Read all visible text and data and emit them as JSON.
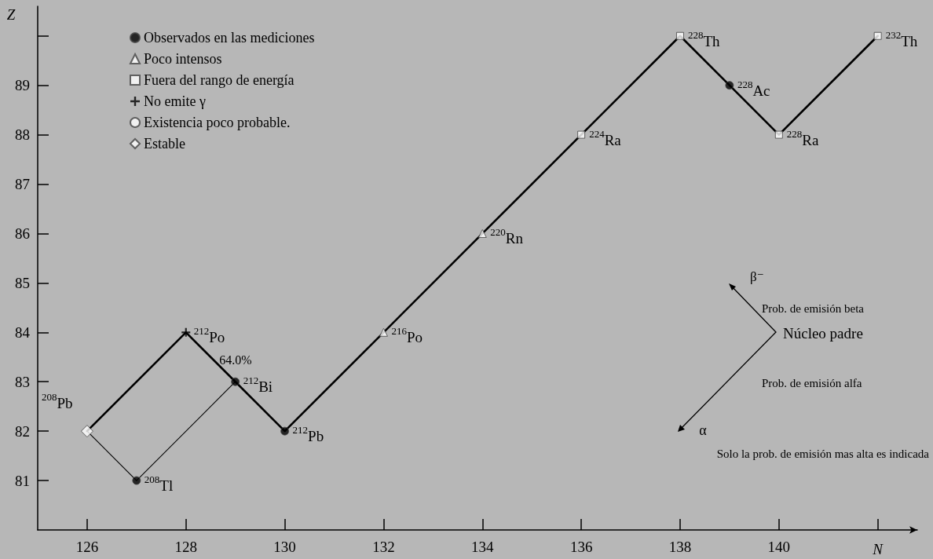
{
  "chart_data": {
    "type": "scatter",
    "xlabel": "N",
    "ylabel": "Z",
    "xlim": [
      125,
      142.8
    ],
    "ylim": [
      80,
      90.6
    ],
    "xticks": [
      126,
      128,
      130,
      132,
      134,
      136,
      138,
      140,
      {
        "value": 142,
        "label": null
      }
    ],
    "yticks": [
      81,
      82,
      83,
      84,
      85,
      86,
      87,
      88,
      89,
      {
        "value": 90,
        "label": null
      }
    ],
    "grid": false,
    "legend": "top left",
    "series": [
      {
        "type": "line",
        "color": "#000000",
        "line_style": "solid",
        "marker": "none",
        "x": [
          142,
          140,
          139,
          138,
          136,
          134,
          132,
          130,
          129,
          128,
          126
        ],
        "values": [
          90,
          88,
          89,
          90,
          88,
          86,
          84,
          82,
          83,
          84,
          82
        ]
      },
      {
        "type": "line",
        "color": "#000000",
        "line_style": "solid",
        "marker": "none",
        "x": [
          129,
          127,
          126
        ],
        "values": [
          83,
          81,
          82
        ]
      },
      {
        "name": "Observados en las mediciones",
        "color": "#000000",
        "marker": "circle",
        "x": [
          139,
          130,
          129,
          127
        ],
        "values": [
          89,
          82,
          83,
          81
        ]
      },
      {
        "name": "Poco intensos",
        "color": "#ffffff",
        "marker": "triangle",
        "x": [
          134,
          132
        ],
        "values": [
          86,
          84
        ]
      },
      {
        "name": "Fuera del rango de energía",
        "color": "#ffffff",
        "marker": "square",
        "x": [
          142,
          140,
          138,
          136
        ],
        "values": [
          90,
          88,
          90,
          88
        ]
      },
      {
        "name": "No emite γ",
        "color": "#000000",
        "marker": "cross",
        "x": [
          128
        ],
        "values": [
          84
        ]
      },
      {
        "name": "Existencia poco probable.",
        "color": "#ffffff",
        "marker": "circle"
      },
      {
        "name": "Estable",
        "color": "#ffffff",
        "marker": "diamond",
        "x": [
          126
        ],
        "values": [
          82
        ]
      }
    ],
    "annotations": [
      {
        "text": "$^{232}$Th",
        "x": 142,
        "y": 90
      },
      {
        "text": "$^{228}$Th",
        "x": 138,
        "y": 90
      },
      {
        "text": "$^{228}$Ac",
        "x": 139,
        "y": 89
      },
      {
        "text": "$^{228}$Ra",
        "x": 140,
        "y": 88
      },
      {
        "text": "$^{224}$Ra",
        "x": 136,
        "y": 88
      },
      {
        "text": "$^{220}$Rn",
        "x": 134,
        "y": 86
      },
      {
        "text": "$^{216}$Po",
        "x": 132,
        "y": 84
      },
      {
        "text": "$^{212}$Pb",
        "x": 130,
        "y": 82
      },
      {
        "text": "$^{212}$Bi",
        "x": 129,
        "y": 83
      },
      {
        "text": "$^{212}$Po",
        "x": 128,
        "y": 84
      },
      "64.0%",
      {
        "text": "$^{208}$Pb",
        "x": 126,
        "y": 82
      },
      {
        "text": "$^{208}$Tl",
        "x": 127,
        "y": 81
      },
      "β⁻",
      "Prob. de emisión beta",
      "Núcleo padre",
      "Prob. de emisión alfa",
      "α",
      "Solo la prob. de emisión mas alta es indicada"
    ]
  }
}
